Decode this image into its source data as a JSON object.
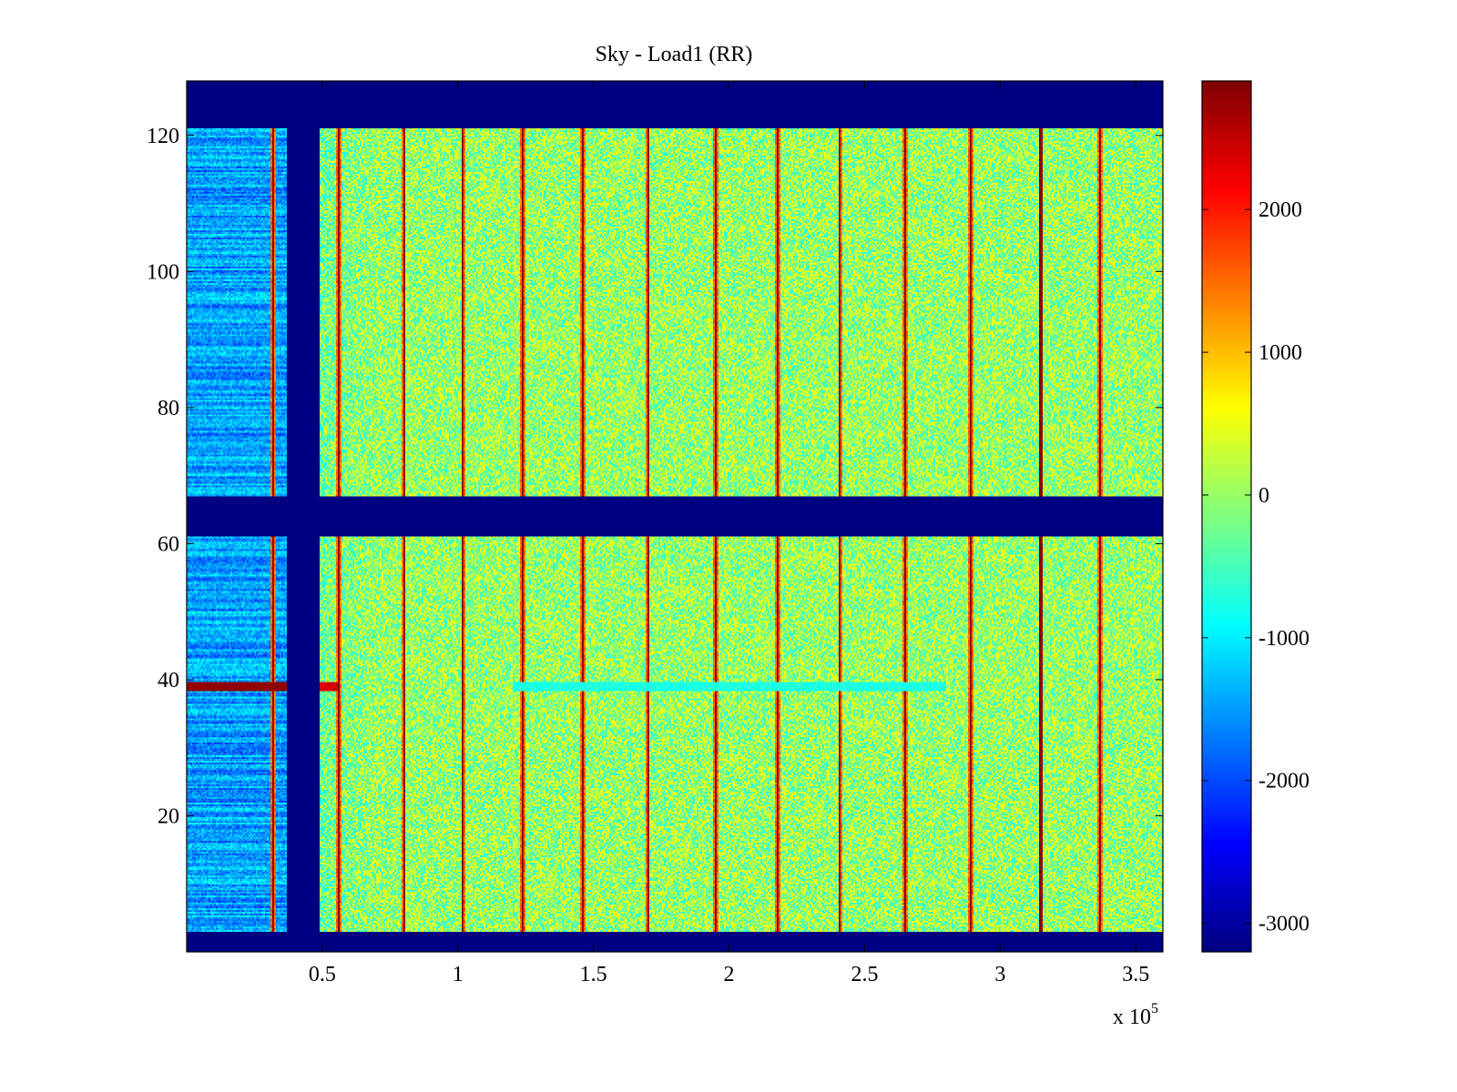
{
  "chart_data": {
    "type": "heatmap",
    "title": "Sky - Load1 (RR)",
    "xlabel": "",
    "ylabel": "",
    "x_multiplier_label": "x 10",
    "x_multiplier_exponent": "5",
    "xlim": [
      0,
      3.6
    ],
    "ylim": [
      0,
      128
    ],
    "x_ticks": [
      0.5,
      1,
      1.5,
      2,
      2.5,
      3,
      3.5
    ],
    "x_tick_labels": [
      "0.5",
      "1",
      "1.5",
      "2",
      "2.5",
      "3",
      "3.5"
    ],
    "y_ticks": [
      20,
      40,
      60,
      80,
      100,
      120
    ],
    "y_tick_labels": [
      "20",
      "40",
      "60",
      "80",
      "100",
      "120"
    ],
    "colorbar": {
      "colormap": "jet",
      "clim": [
        -3200,
        2900
      ],
      "ticks": [
        -3000,
        -2000,
        -1000,
        0,
        1000,
        2000
      ],
      "tick_labels": [
        "-3000",
        "-2000",
        "-1000",
        "0",
        "1000",
        "2000"
      ]
    },
    "background_value": -3200,
    "masked_row_bands": [
      [
        0,
        3
      ],
      [
        61,
        67
      ],
      [
        121,
        128
      ]
    ],
    "masked_column_bands": [
      [
        0.37,
        0.49
      ]
    ],
    "low_region": {
      "x_range": [
        0,
        0.37
      ],
      "value_range": [
        -2400,
        -700
      ]
    },
    "main_region": {
      "x_range": [
        0.49,
        3.6
      ],
      "value_range": [
        -700,
        700
      ]
    },
    "vertical_stripes_x": [
      0.32,
      0.56,
      0.8,
      1.02,
      1.24,
      1.46,
      1.7,
      1.95,
      2.18,
      2.41,
      2.65,
      2.89,
      3.15,
      3.37
    ],
    "horizontal_anomaly": {
      "y": 39,
      "x_range": [
        0,
        0.56
      ],
      "value": 2800
    },
    "colors": {
      "jet_dark_blue": "#00008f",
      "jet_cyan": "#00ffff",
      "jet_yellow": "#ffff00",
      "jet_dark_red": "#800000"
    }
  }
}
